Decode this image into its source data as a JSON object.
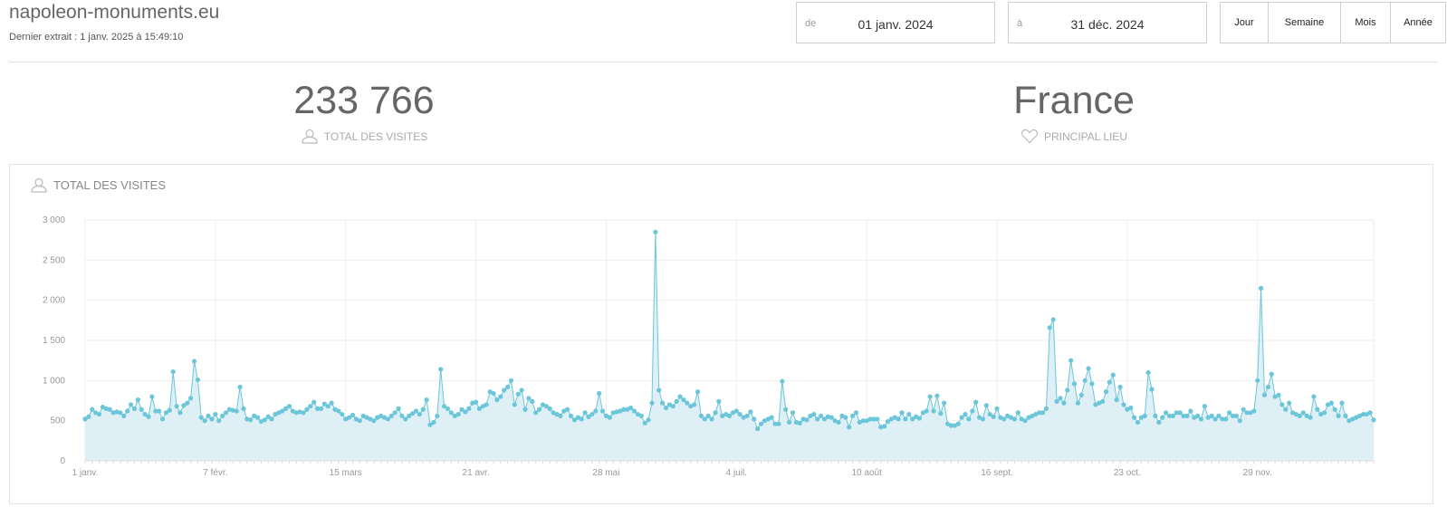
{
  "header": {
    "site_title": "napoleon-monuments.eu",
    "last_extract": "Dernier extrait : 1 janv. 2025 à 15:49:10"
  },
  "date_range": {
    "from_label": "de",
    "from_value": "01 janv. 2024",
    "to_label": "à",
    "to_value": "31 déc. 2024"
  },
  "period_buttons": [
    "Jour",
    "Semaine",
    "Mois",
    "Année"
  ],
  "kpis": {
    "total_visits_value": "233 766",
    "total_visits_label": "TOTAL DES VISITES",
    "top_place_value": "France",
    "top_place_label": "PRINCIPAL LIEU"
  },
  "chart_panel": {
    "title": "TOTAL DES VISITES"
  },
  "colors": {
    "line": "#6cc6d9",
    "area": "#def0f6",
    "grid": "#eeeeee",
    "text_muted": "#999999"
  },
  "chart_data": {
    "type": "area",
    "title": "TOTAL DES VISITES",
    "xlabel": "",
    "ylabel": "",
    "ylim": [
      0,
      3000
    ],
    "yticks": [
      0,
      500,
      1000,
      1500,
      2000,
      2500,
      3000
    ],
    "ytick_labels": [
      "0",
      "500",
      "1 000",
      "1 500",
      "2 000",
      "2 500",
      "3 000"
    ],
    "xtick_labels": [
      "1 janv.",
      "7 févr.",
      "15 mars",
      "21 avr.",
      "28 mai",
      "4 juil.",
      "10 août",
      "16 sept.",
      "23 oct.",
      "29 nov."
    ],
    "xtick_days": [
      0,
      37,
      74,
      111,
      148,
      185,
      222,
      259,
      296,
      333
    ],
    "grid": true,
    "legend": "none",
    "series": [
      {
        "values": [
          520,
          550,
          640,
          600,
          580,
          670,
          650,
          640,
          600,
          610,
          600,
          560,
          620,
          700,
          650,
          760,
          640,
          580,
          550,
          800,
          620,
          620,
          520,
          600,
          630,
          1110,
          680,
          600,
          690,
          720,
          780,
          1240,
          1010,
          540,
          500,
          560,
          520,
          580,
          500,
          560,
          600,
          640,
          630,
          620,
          920,
          650,
          520,
          510,
          560,
          540,
          490,
          510,
          550,
          520,
          580,
          600,
          620,
          650,
          680,
          620,
          600,
          610,
          600,
          640,
          680,
          730,
          650,
          650,
          710,
          680,
          720,
          640,
          620,
          580,
          520,
          540,
          570,
          520,
          500,
          560,
          540,
          520,
          500,
          540,
          560,
          540,
          520,
          560,
          600,
          650,
          560,
          520,
          560,
          590,
          620,
          580,
          640,
          760,
          450,
          480,
          560,
          1140,
          680,
          650,
          600,
          560,
          580,
          640,
          610,
          650,
          720,
          730,
          650,
          680,
          700,
          860,
          840,
          760,
          800,
          880,
          920,
          1000,
          700,
          830,
          880,
          640,
          780,
          740,
          600,
          640,
          700,
          680,
          650,
          600,
          580,
          560,
          620,
          640,
          560,
          510,
          540,
          520,
          600,
          550,
          580,
          620,
          840,
          620,
          560,
          540,
          600,
          610,
          620,
          640,
          640,
          660,
          620,
          580,
          560,
          470,
          510,
          720,
          2850,
          880,
          720,
          660,
          700,
          680,
          740,
          800,
          760,
          720,
          680,
          700,
          860,
          560,
          520,
          560,
          520,
          600,
          740,
          560,
          580,
          560,
          600,
          620,
          580,
          540,
          560,
          610,
          520,
          400,
          460,
          500,
          520,
          540,
          460,
          460,
          990,
          640,
          480,
          600,
          480,
          470,
          520,
          510,
          560,
          580,
          520,
          560,
          520,
          550,
          540,
          500,
          480,
          560,
          540,
          420,
          560,
          600,
          480,
          500,
          500,
          520,
          520,
          520,
          420,
          430,
          490,
          520,
          540,
          520,
          600,
          520,
          580,
          520,
          550,
          530,
          600,
          620,
          800,
          620,
          810,
          590,
          720,
          460,
          440,
          440,
          460,
          540,
          580,
          520,
          620,
          730,
          540,
          520,
          690,
          580,
          550,
          650,
          540,
          520,
          560,
          540,
          520,
          600,
          520,
          500,
          540,
          560,
          580,
          600,
          600,
          650,
          1660,
          1760,
          740,
          780,
          720,
          880,
          1250,
          960,
          720,
          820,
          1000,
          1150,
          960,
          700,
          720,
          740,
          860,
          980,
          1070,
          760,
          920,
          700,
          640,
          660,
          540,
          480,
          540,
          560,
          1100,
          890,
          560,
          480,
          540,
          600,
          560,
          560,
          600,
          600,
          560,
          560,
          620,
          540,
          560,
          520,
          680,
          540,
          560,
          520,
          560,
          520,
          520,
          600,
          560,
          560,
          500,
          640,
          600,
          600,
          620,
          1000,
          2150,
          820,
          920,
          1080,
          800,
          820,
          700,
          640,
          720,
          600,
          580,
          560,
          600,
          560,
          540,
          800,
          640,
          580,
          600,
          700,
          720,
          640,
          560,
          720,
          560,
          500,
          520,
          540,
          560,
          580,
          580,
          600,
          510
        ]
      }
    ]
  }
}
